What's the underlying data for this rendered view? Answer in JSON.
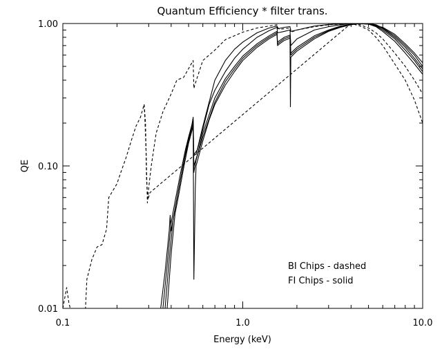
{
  "chart_data": {
    "type": "line",
    "title": "Quantum Efficiency * filter trans.",
    "xlabel": "Energy (keV)",
    "ylabel": "QE",
    "xscale": "log",
    "yscale": "log",
    "xlim": [
      0.1,
      10.0
    ],
    "ylim": [
      0.01,
      1.0
    ],
    "x_ticks": [
      {
        "value": 0.1,
        "label": "0.1"
      },
      {
        "value": 1.0,
        "label": "1.0"
      },
      {
        "value": 10.0,
        "label": "10.0"
      }
    ],
    "y_ticks": [
      {
        "value": 0.01,
        "label": "0.01"
      },
      {
        "value": 0.1,
        "label": "0.10"
      },
      {
        "value": 1.0,
        "label": "1.00"
      }
    ],
    "grid": false,
    "annotations": [
      "BI Chips - dashed",
      "FI Chips - solid"
    ],
    "series": [
      {
        "style": "dashed",
        "group": "BI",
        "points": [
          [
            0.1,
            0.01
          ],
          [
            0.105,
            0.014
          ],
          [
            0.108,
            0.011
          ],
          [
            0.112,
            0.009
          ],
          [
            0.133,
            0.009
          ],
          [
            0.136,
            0.016
          ],
          [
            0.145,
            0.022
          ],
          [
            0.155,
            0.027
          ],
          [
            0.165,
            0.028
          ],
          [
            0.175,
            0.036
          ],
          [
            0.18,
            0.06
          ],
          [
            0.2,
            0.075
          ],
          [
            0.21,
            0.09
          ],
          [
            0.225,
            0.115
          ],
          [
            0.24,
            0.15
          ],
          [
            0.255,
            0.19
          ],
          [
            0.27,
            0.22
          ],
          [
            0.283,
            0.27
          ],
          [
            0.285,
            0.23
          ],
          [
            0.29,
            0.13
          ],
          [
            0.295,
            0.055
          ],
          [
            0.3,
            0.07
          ],
          [
            0.31,
            0.1
          ],
          [
            0.33,
            0.17
          ],
          [
            0.36,
            0.24
          ],
          [
            0.4,
            0.32
          ],
          [
            0.43,
            0.4
          ],
          [
            0.47,
            0.42
          ],
          [
            0.53,
            0.55
          ],
          [
            0.535,
            0.35
          ],
          [
            0.545,
            0.38
          ],
          [
            0.6,
            0.55
          ],
          [
            0.7,
            0.65
          ],
          [
            0.8,
            0.77
          ],
          [
            1.0,
            0.87
          ],
          [
            1.2,
            0.93
          ],
          [
            1.4,
            0.96
          ],
          [
            1.55,
            0.98
          ],
          [
            1.57,
            0.93
          ],
          [
            1.6,
            0.91
          ],
          [
            1.7,
            0.92
          ],
          [
            1.84,
            0.93
          ],
          [
            1.85,
            0.87
          ],
          [
            2.0,
            0.9
          ],
          [
            2.5,
            0.95
          ],
          [
            3.0,
            0.98
          ],
          [
            3.5,
            0.99
          ],
          [
            4.0,
            1.0
          ],
          [
            4.5,
            0.96
          ],
          [
            5.0,
            0.9
          ],
          [
            5.5,
            0.8
          ],
          [
            6.0,
            0.7
          ],
          [
            7.0,
            0.52
          ],
          [
            8.0,
            0.4
          ],
          [
            9.0,
            0.29
          ],
          [
            10.0,
            0.2
          ]
        ]
      },
      {
        "style": "dashed",
        "group": "BI",
        "points": [
          [
            0.283,
            0.27
          ],
          [
            0.288,
            0.2
          ],
          [
            0.292,
            0.08
          ],
          [
            0.297,
            0.058
          ],
          [
            0.305,
            0.065
          ],
          [
            4.0,
            1.0
          ],
          [
            4.5,
            0.98
          ],
          [
            5.0,
            0.93
          ],
          [
            5.5,
            0.86
          ],
          [
            6.0,
            0.78
          ],
          [
            7.0,
            0.62
          ],
          [
            8.0,
            0.5
          ],
          [
            9.0,
            0.4
          ],
          [
            10.0,
            0.32
          ]
        ]
      },
      {
        "style": "solid",
        "group": "FI",
        "points": [
          [
            0.35,
            0.01
          ],
          [
            0.37,
            0.018
          ],
          [
            0.39,
            0.035
          ],
          [
            0.395,
            0.045
          ],
          [
            0.4,
            0.035
          ],
          [
            0.42,
            0.05
          ],
          [
            0.45,
            0.08
          ],
          [
            0.48,
            0.12
          ],
          [
            0.5,
            0.15
          ],
          [
            0.53,
            0.2
          ],
          [
            0.535,
            0.016
          ],
          [
            0.545,
            0.07
          ],
          [
            0.55,
            0.1
          ],
          [
            0.6,
            0.15
          ],
          [
            0.65,
            0.21
          ],
          [
            0.7,
            0.27
          ],
          [
            0.8,
            0.37
          ],
          [
            0.9,
            0.46
          ],
          [
            1.0,
            0.55
          ],
          [
            1.2,
            0.68
          ],
          [
            1.4,
            0.78
          ],
          [
            1.55,
            0.84
          ],
          [
            1.56,
            0.7
          ],
          [
            1.6,
            0.72
          ],
          [
            1.7,
            0.76
          ],
          [
            1.83,
            0.79
          ],
          [
            1.84,
            0.26
          ],
          [
            1.85,
            0.58
          ],
          [
            2.0,
            0.64
          ],
          [
            2.5,
            0.78
          ],
          [
            3.0,
            0.88
          ],
          [
            3.5,
            0.94
          ],
          [
            4.0,
            0.98
          ],
          [
            4.5,
            1.0
          ],
          [
            5.0,
            0.99
          ],
          [
            5.5,
            0.95
          ],
          [
            6.0,
            0.88
          ],
          [
            7.0,
            0.75
          ],
          [
            8.0,
            0.62
          ],
          [
            9.0,
            0.52
          ],
          [
            10.0,
            0.44
          ]
        ]
      },
      {
        "style": "solid",
        "group": "FI",
        "points": [
          [
            0.36,
            0.01
          ],
          [
            0.38,
            0.02
          ],
          [
            0.4,
            0.04
          ],
          [
            0.42,
            0.056
          ],
          [
            0.45,
            0.088
          ],
          [
            0.48,
            0.13
          ],
          [
            0.5,
            0.16
          ],
          [
            0.53,
            0.21
          ],
          [
            0.535,
            0.09
          ],
          [
            0.55,
            0.11
          ],
          [
            0.6,
            0.16
          ],
          [
            0.7,
            0.28
          ],
          [
            0.8,
            0.39
          ],
          [
            0.9,
            0.48
          ],
          [
            1.0,
            0.57
          ],
          [
            1.2,
            0.7
          ],
          [
            1.4,
            0.8
          ],
          [
            1.55,
            0.86
          ],
          [
            1.56,
            0.72
          ],
          [
            1.7,
            0.78
          ],
          [
            1.83,
            0.81
          ],
          [
            1.85,
            0.6
          ],
          [
            2.0,
            0.66
          ],
          [
            2.5,
            0.8
          ],
          [
            3.0,
            0.89
          ],
          [
            3.5,
            0.95
          ],
          [
            4.0,
            0.99
          ],
          [
            4.7,
            1.0
          ],
          [
            5.0,
            0.99
          ],
          [
            5.5,
            0.96
          ],
          [
            6.0,
            0.9
          ],
          [
            7.0,
            0.78
          ],
          [
            8.0,
            0.65
          ],
          [
            9.0,
            0.55
          ],
          [
            10.0,
            0.46
          ]
        ]
      },
      {
        "style": "solid",
        "group": "FI",
        "points": [
          [
            0.37,
            0.01
          ],
          [
            0.39,
            0.022
          ],
          [
            0.41,
            0.042
          ],
          [
            0.43,
            0.058
          ],
          [
            0.46,
            0.092
          ],
          [
            0.49,
            0.14
          ],
          [
            0.52,
            0.19
          ],
          [
            0.53,
            0.22
          ],
          [
            0.535,
            0.1
          ],
          [
            0.56,
            0.12
          ],
          [
            0.6,
            0.17
          ],
          [
            0.7,
            0.3
          ],
          [
            0.8,
            0.41
          ],
          [
            0.9,
            0.5
          ],
          [
            1.0,
            0.59
          ],
          [
            1.2,
            0.72
          ],
          [
            1.4,
            0.82
          ],
          [
            1.55,
            0.88
          ],
          [
            1.56,
            0.74
          ],
          [
            1.7,
            0.8
          ],
          [
            1.83,
            0.83
          ],
          [
            1.85,
            0.62
          ],
          [
            2.0,
            0.68
          ],
          [
            2.5,
            0.82
          ],
          [
            3.0,
            0.9
          ],
          [
            3.5,
            0.96
          ],
          [
            4.0,
            0.99
          ],
          [
            4.8,
            1.0
          ],
          [
            5.5,
            0.97
          ],
          [
            6.0,
            0.92
          ],
          [
            7.0,
            0.8
          ],
          [
            8.0,
            0.68
          ],
          [
            9.0,
            0.57
          ],
          [
            10.0,
            0.48
          ]
        ]
      },
      {
        "style": "solid",
        "group": "FI",
        "points": [
          [
            0.38,
            0.01
          ],
          [
            0.4,
            0.024
          ],
          [
            0.42,
            0.046
          ],
          [
            0.44,
            0.062
          ],
          [
            0.47,
            0.098
          ],
          [
            0.5,
            0.145
          ],
          [
            0.53,
            0.19
          ],
          [
            0.535,
            0.12
          ],
          [
            0.56,
            0.13
          ],
          [
            0.6,
            0.18
          ],
          [
            0.65,
            0.27
          ],
          [
            0.7,
            0.34
          ],
          [
            0.8,
            0.46
          ],
          [
            0.9,
            0.57
          ],
          [
            1.0,
            0.66
          ],
          [
            1.2,
            0.8
          ],
          [
            1.4,
            0.89
          ],
          [
            1.55,
            0.94
          ],
          [
            1.56,
            0.86
          ],
          [
            1.7,
            0.88
          ],
          [
            1.83,
            0.9
          ],
          [
            1.85,
            0.7
          ],
          [
            2.0,
            0.78
          ],
          [
            2.5,
            0.9
          ],
          [
            3.0,
            0.95
          ],
          [
            3.5,
            0.98
          ],
          [
            4.0,
            1.0
          ],
          [
            5.0,
            1.0
          ],
          [
            5.5,
            0.98
          ],
          [
            6.0,
            0.93
          ],
          [
            7.0,
            0.82
          ],
          [
            8.0,
            0.7
          ],
          [
            9.0,
            0.6
          ],
          [
            10.0,
            0.5
          ]
        ]
      },
      {
        "style": "solid",
        "group": "FI",
        "points": [
          [
            0.55,
            0.12
          ],
          [
            0.6,
            0.19
          ],
          [
            0.7,
            0.4
          ],
          [
            0.8,
            0.55
          ],
          [
            0.9,
            0.66
          ],
          [
            1.0,
            0.74
          ],
          [
            1.2,
            0.86
          ],
          [
            1.4,
            0.93
          ],
          [
            1.55,
            0.96
          ],
          [
            1.57,
            0.92
          ],
          [
            1.7,
            0.94
          ],
          [
            1.83,
            0.95
          ],
          [
            1.85,
            0.88
          ],
          [
            2.0,
            0.9
          ],
          [
            2.5,
            0.96
          ],
          [
            3.0,
            0.985
          ],
          [
            3.5,
            0.995
          ],
          [
            4.0,
            1.0
          ],
          [
            5.0,
            0.99
          ],
          [
            6.0,
            0.94
          ],
          [
            7.0,
            0.84
          ],
          [
            8.0,
            0.72
          ],
          [
            9.0,
            0.62
          ],
          [
            10.0,
            0.53
          ]
        ]
      }
    ]
  }
}
